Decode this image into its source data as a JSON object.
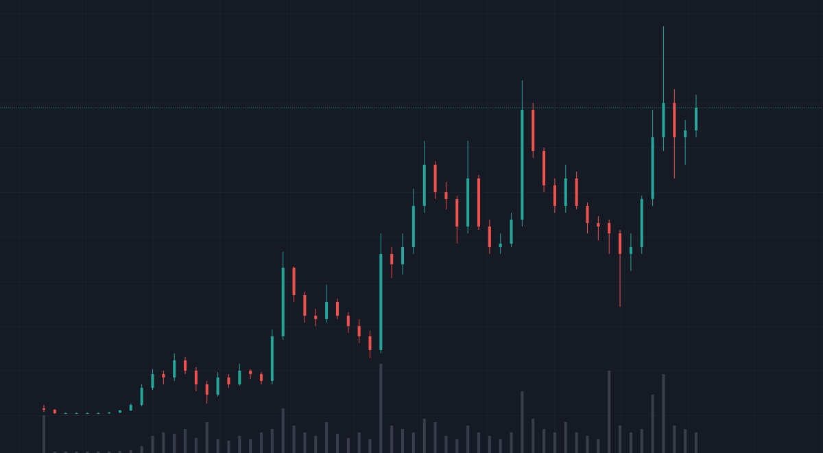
{
  "chart_data": {
    "type": "candlestick",
    "open": [
      65,
      63,
      58,
      58,
      58,
      58,
      58,
      59,
      62,
      70,
      95,
      115,
      110,
      135,
      120,
      100,
      85,
      110,
      100,
      120,
      115,
      105,
      170,
      270,
      230,
      200,
      195,
      220,
      200,
      185,
      170,
      150,
      290,
      275,
      300,
      360,
      420,
      380,
      370,
      330,
      400,
      330,
      300,
      305,
      340,
      500,
      440,
      390,
      360,
      400,
      360,
      335,
      335,
      320,
      290,
      300,
      370,
      460,
      510,
      460,
      470
    ],
    "close": [
      63,
      58,
      58,
      58,
      58,
      58,
      59,
      62,
      70,
      95,
      115,
      110,
      135,
      120,
      100,
      85,
      110,
      100,
      120,
      115,
      105,
      170,
      270,
      230,
      200,
      195,
      220,
      200,
      185,
      170,
      150,
      290,
      275,
      300,
      360,
      420,
      380,
      370,
      330,
      400,
      330,
      300,
      305,
      340,
      500,
      440,
      390,
      360,
      400,
      360,
      335,
      330,
      320,
      290,
      300,
      370,
      460,
      510,
      460,
      470,
      503
    ],
    "high": [
      70,
      64,
      59,
      59,
      59,
      59,
      60,
      63,
      72,
      100,
      122,
      120,
      145,
      140,
      125,
      105,
      118,
      115,
      130,
      122,
      118,
      180,
      293,
      272,
      235,
      210,
      245,
      225,
      205,
      195,
      178,
      320,
      300,
      320,
      385,
      455,
      425,
      395,
      375,
      455,
      405,
      340,
      320,
      350,
      543,
      510,
      445,
      400,
      420,
      410,
      365,
      345,
      340,
      325,
      320,
      375,
      500,
      622,
      530,
      485,
      522
    ],
    "low": [
      60,
      57,
      57,
      57,
      57,
      57,
      57,
      58,
      61,
      68,
      92,
      100,
      105,
      115,
      90,
      72,
      82,
      95,
      98,
      108,
      100,
      100,
      165,
      220,
      190,
      185,
      190,
      195,
      175,
      160,
      138,
      145,
      255,
      260,
      290,
      350,
      370,
      355,
      305,
      320,
      325,
      290,
      290,
      300,
      330,
      430,
      380,
      350,
      350,
      355,
      320,
      310,
      290,
      213,
      265,
      290,
      360,
      440,
      400,
      420,
      460
    ],
    "volume": [
      55,
      2,
      2,
      2,
      2,
      2,
      2,
      3,
      4,
      10,
      25,
      30,
      28,
      35,
      22,
      45,
      20,
      18,
      25,
      20,
      30,
      35,
      65,
      40,
      30,
      25,
      45,
      28,
      22,
      30,
      20,
      130,
      40,
      35,
      30,
      50,
      45,
      25,
      20,
      40,
      30,
      25,
      20,
      30,
      90,
      50,
      35,
      30,
      45,
      30,
      25,
      20,
      120,
      40,
      30,
      35,
      85,
      115,
      40,
      35,
      30
    ],
    "up_color": "#26a69a",
    "down_color": "#ef5350",
    "volume_color": "#3a3e4c",
    "ylim": [
      0,
      660
    ],
    "volume_ylim": [
      0,
      660
    ],
    "price_line": true
  }
}
